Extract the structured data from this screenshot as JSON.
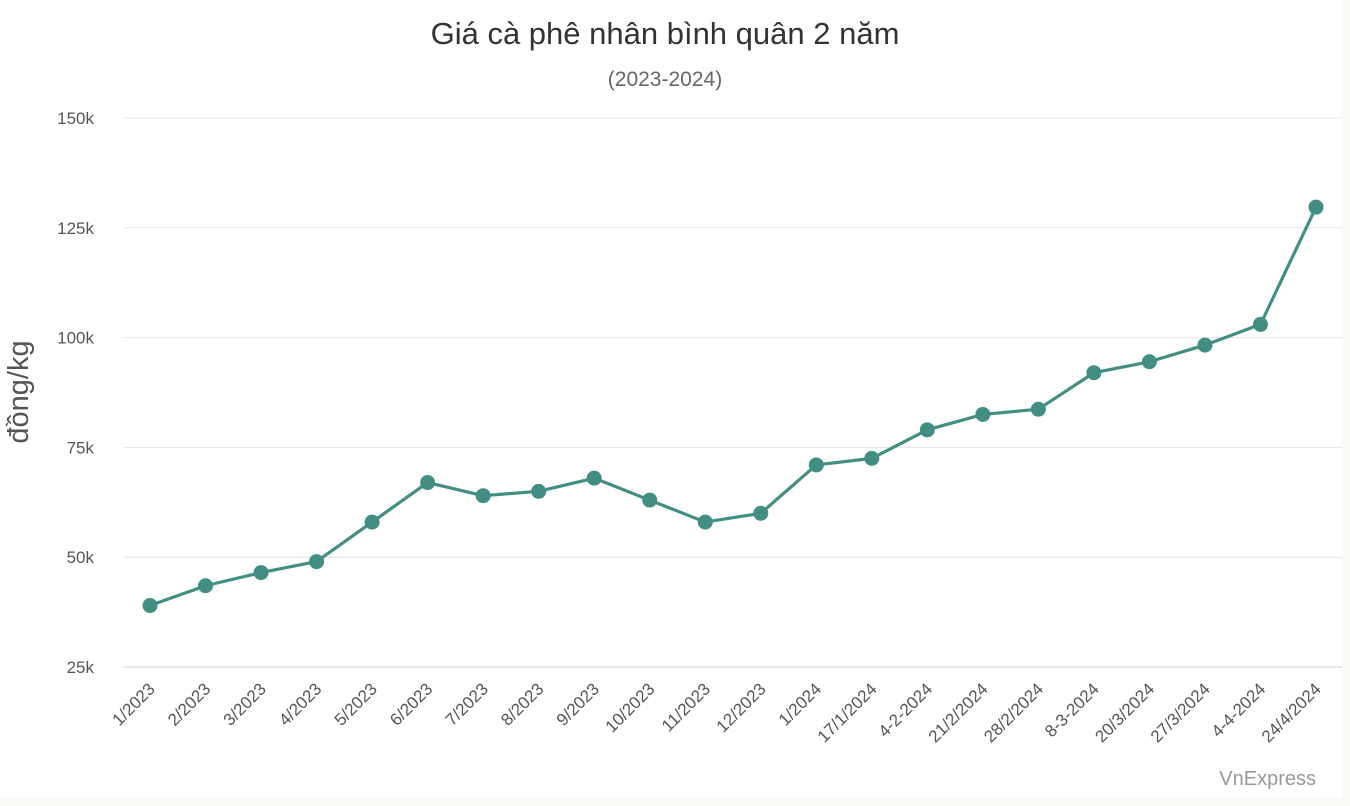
{
  "chart_data": {
    "type": "line",
    "title": "Giá cà phê nhân bình quân 2 năm",
    "subtitle": "(2023-2024)",
    "xlabel": "",
    "ylabel": "đồng/kg",
    "y_ticks": [
      {
        "value": 25000,
        "label": "25k"
      },
      {
        "value": 50000,
        "label": "50k"
      },
      {
        "value": 75000,
        "label": "75k"
      },
      {
        "value": 100000,
        "label": "100k"
      },
      {
        "value": 125000,
        "label": "125k"
      },
      {
        "value": 150000,
        "label": "150k"
      }
    ],
    "ylim": [
      25000,
      150000
    ],
    "grid": true,
    "categories": [
      "1/2023",
      "2/2023",
      "3/2023",
      "4/2023",
      "5/2023",
      "6/2023",
      "7/2023",
      "8/2023",
      "9/2023",
      "10/2023",
      "11/2023",
      "12/2023",
      "1/2024",
      "17/1/2024",
      "4-2-2024",
      "21/2/2024",
      "28/2/2024",
      "8-3-2024",
      "20/3/2024",
      "27/3/2024",
      "4-4-2024",
      "24/4/2024"
    ],
    "series": [
      {
        "values": [
          39000,
          43500,
          46500,
          49000,
          58000,
          67000,
          64000,
          65000,
          68000,
          63000,
          58000,
          60000,
          71000,
          72500,
          79000,
          82500,
          83700,
          92000,
          94500,
          98300,
          103000,
          129700
        ],
        "color": "#438e83"
      }
    ],
    "credit": "VnExpress"
  }
}
